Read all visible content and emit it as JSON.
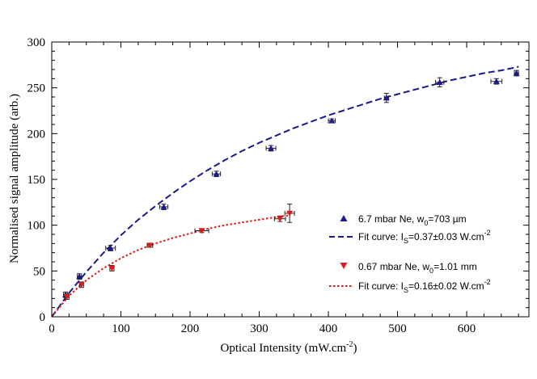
{
  "chart_data": {
    "type": "scatter",
    "title": "",
    "xlabel": "Optical Intensity (mW.cm",
    "xlabel_sup": "-2",
    "xlabel_end": ")",
    "ylabel": "Normalised signal amplitude (arb.)",
    "xlim": [
      0,
      690
    ],
    "ylim": [
      0,
      300
    ],
    "xticks": [
      0,
      100,
      200,
      300,
      400,
      500,
      600
    ],
    "yticks": [
      0,
      50,
      100,
      150,
      200,
      250,
      300
    ],
    "legend_position": "right",
    "colors": {
      "blue": "#1a1a8c",
      "red": "#e0191a",
      "axis": "#000000"
    },
    "series": [
      {
        "name": "6.7 mbar Ne, w0=703 µm",
        "legend": {
          "pre": "6.7 mbar Ne, w",
          "sub": "0",
          "post": "=703 µm"
        },
        "marker": "triangle-up",
        "color": "#1a1a8c",
        "points": [
          {
            "x": 20,
            "y": 24,
            "xerr": 3,
            "yerr": 3
          },
          {
            "x": 40,
            "y": 44,
            "xerr": 3,
            "yerr": 3
          },
          {
            "x": 85,
            "y": 75,
            "xerr": 7,
            "yerr": 3
          },
          {
            "x": 162,
            "y": 120,
            "xerr": 6,
            "yerr": 3
          },
          {
            "x": 238,
            "y": 156,
            "xerr": 6,
            "yerr": 3
          },
          {
            "x": 317,
            "y": 184,
            "xerr": 7,
            "yerr": 3
          },
          {
            "x": 405,
            "y": 214,
            "xerr": 5,
            "yerr": 2
          },
          {
            "x": 484,
            "y": 239,
            "xerr": 3,
            "yerr": 5
          },
          {
            "x": 561,
            "y": 256,
            "xerr": 6,
            "yerr": 5
          },
          {
            "x": 643,
            "y": 257,
            "xerr": 8,
            "yerr": 3
          },
          {
            "x": 672,
            "y": 266,
            "xerr": 3,
            "yerr": 3
          }
        ]
      },
      {
        "name": "0.67 mbar Ne, w0=1.01 mm",
        "legend": {
          "pre": "0.67 mbar Ne, w",
          "sub": "0",
          "post": "=1.01 mm"
        },
        "marker": "triangle-down",
        "color": "#e0191a",
        "points": [
          {
            "x": 22,
            "y": 22,
            "xerr": 3,
            "yerr": 3
          },
          {
            "x": 43,
            "y": 35,
            "xerr": 3,
            "yerr": 3
          },
          {
            "x": 87,
            "y": 53,
            "xerr": 3,
            "yerr": 3
          },
          {
            "x": 142,
            "y": 78,
            "xerr": 4,
            "yerr": 2
          },
          {
            "x": 217,
            "y": 94,
            "xerr": 10,
            "yerr": 2
          },
          {
            "x": 330,
            "y": 107,
            "xerr": 8,
            "yerr": 3
          },
          {
            "x": 344,
            "y": 113,
            "xerr": 7,
            "yerr": 10
          }
        ]
      }
    ],
    "fits": [
      {
        "name": "Fit curve: Is=0.37±0.03 W.cm-2",
        "legend": {
          "pre": "Fit curve: I",
          "sub": "S",
          "post": "=0.37±0.03 W.cm",
          "sup": "-2"
        },
        "style": "dashed",
        "color": "#1a1a8c",
        "x": [
          0,
          25,
          50,
          75,
          100,
          125,
          150,
          175,
          200,
          225,
          250,
          275,
          300,
          325,
          350,
          375,
          400,
          425,
          450,
          475,
          500,
          525,
          550,
          575,
          600,
          625,
          650,
          675
        ],
        "y": [
          0,
          26,
          49,
          70,
          89,
          106,
          121,
          135,
          148,
          160,
          171,
          181,
          190,
          198,
          206,
          213,
          220,
          226,
          232,
          238,
          243,
          248,
          253,
          258,
          262,
          266,
          269,
          273
        ]
      },
      {
        "name": "Fit curve: Is=0.16±0.02 W.cm-2",
        "legend": {
          "pre": "Fit curve: I",
          "sub": "S",
          "post": "=0.16±0.02 W.cm",
          "sup": "-2"
        },
        "style": "dotted",
        "color": "#e0191a",
        "x": [
          0,
          25,
          50,
          75,
          100,
          125,
          150,
          175,
          200,
          225,
          250,
          275,
          300,
          325,
          345
        ],
        "y": [
          0,
          23,
          40,
          53,
          64,
          73,
          80,
          86,
          91,
          96,
          100,
          103,
          106,
          109,
          111
        ]
      }
    ]
  }
}
